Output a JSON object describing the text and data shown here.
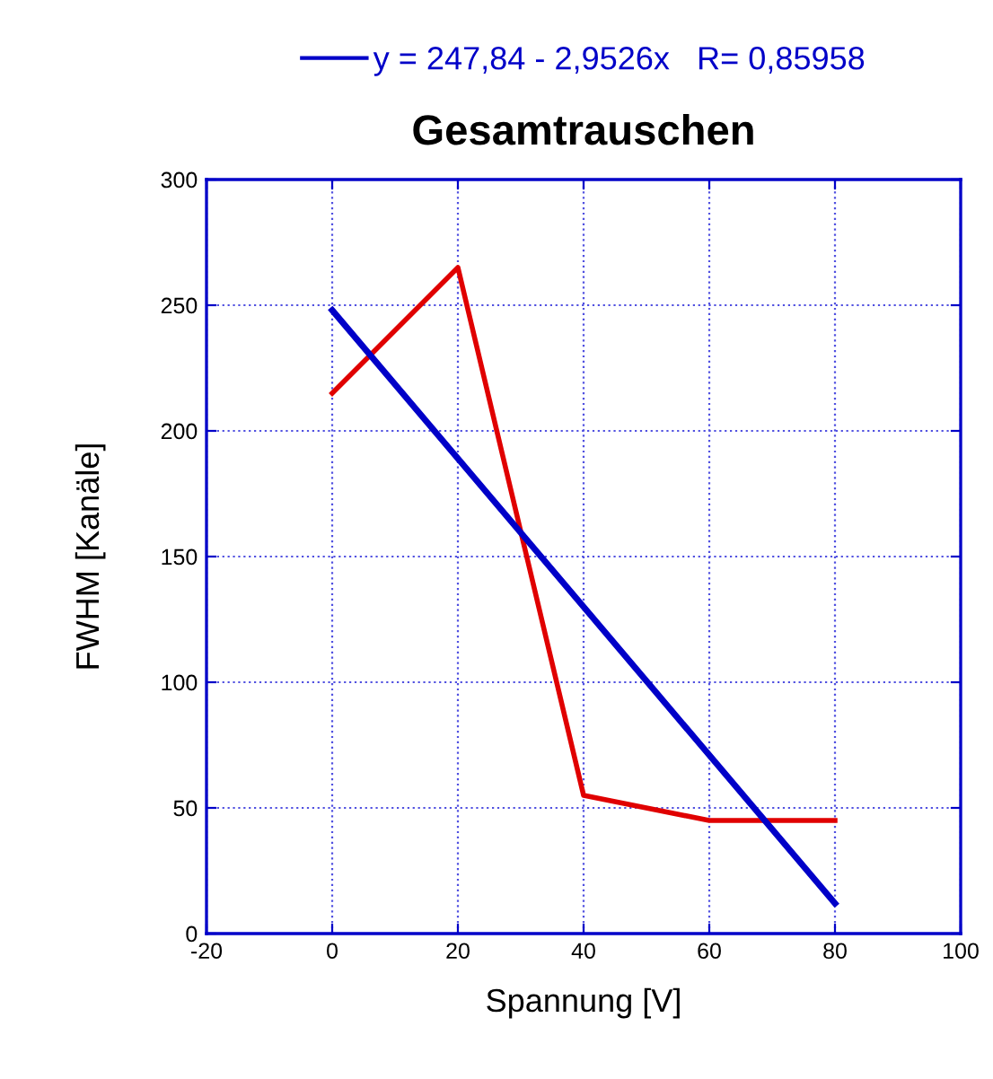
{
  "chart_data": {
    "type": "line",
    "title": "Gesamtrauschen",
    "xlabel": "Spannung [V]",
    "ylabel": "FWHM [Kanäle]",
    "series": [
      {
        "color": "#e00000",
        "x": [
          0,
          20,
          40,
          60,
          80
        ],
        "values": [
          215,
          265,
          55,
          45,
          45
        ]
      },
      {
        "name": "y = 247,84 - 2,9526x   R= 0,85958",
        "color": "#0000c8",
        "x": [
          0,
          80
        ],
        "values": [
          248,
          12
        ]
      }
    ],
    "xlim": [
      -20,
      100
    ],
    "xticks": [
      -20,
      0,
      20,
      40,
      60,
      80,
      100
    ],
    "ylim": [
      0,
      300
    ],
    "yticks": [
      0,
      50,
      100,
      150,
      200,
      250,
      300
    ],
    "grid": true,
    "legend": "top",
    "marker": "none",
    "line_style": "solid"
  }
}
